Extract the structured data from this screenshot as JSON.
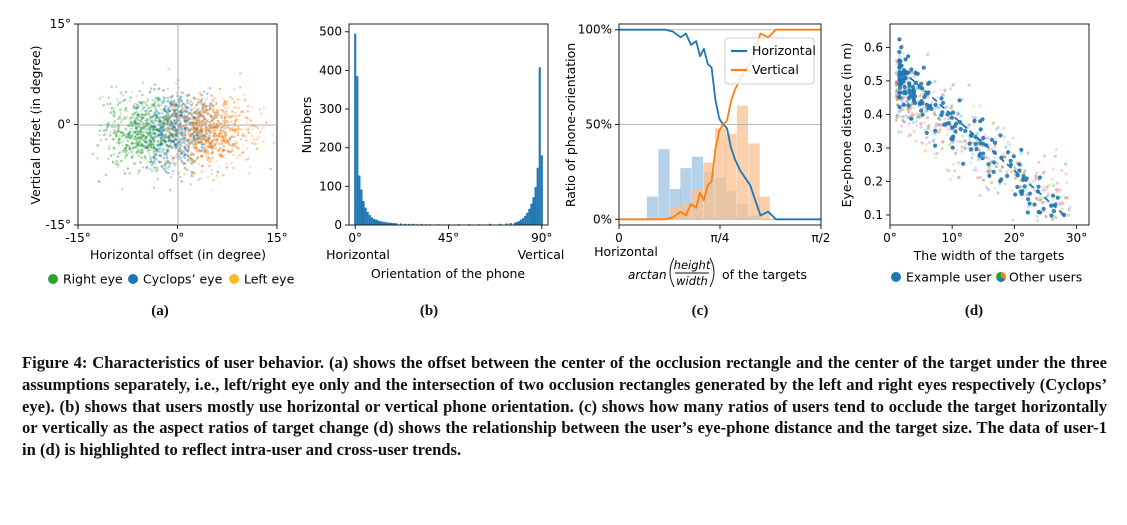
{
  "figure": {
    "sublabels": [
      "(a)",
      "(b)",
      "(c)",
      "(d)"
    ],
    "caption": "Figure 4: Characteristics of user behavior. (a) shows the offset between the center of the occlusion rectangle and the center of the target under the three assumptions separately, i.e., left/right eye only and the intersection of two occlusion rectangles generated by the left and right eyes respectively (Cyclops’ eye). (b) shows that users mostly use horizontal or vertical phone orientation. (c) shows how many ratios of users tend to occlude the target horizontally or vertically as the aspect ratios of target change (d) shows the relationship between the user’s eye-phone distance and the target size. The data of user-1 in (d) is highlighted to reflect intra-user and cross-user trends."
  },
  "colors": {
    "green": "#2ca02c",
    "blue": "#1f77b4",
    "orange": "#ff7f0e",
    "lightblue": "#9ec3e0",
    "lightorange": "#f9c08f"
  },
  "chart_data": [
    {
      "type": "scatter",
      "xlabel": "Horizontal offset (in degree)",
      "ylabel": "Vertical offset (in degree)",
      "xlim": [
        -15,
        15
      ],
      "ylim": [
        -15,
        15
      ],
      "xtick_labels": [
        "-15°",
        "0°",
        "15°"
      ],
      "ytick_labels": [
        "15°",
        "0°",
        "-15°"
      ],
      "series": [
        {
          "name": "Right eye",
          "color": "#2ca02c",
          "center": [
            -5,
            -1
          ],
          "spread": [
            3.2,
            2.6
          ]
        },
        {
          "name": "Cyclops’ eye",
          "color": "#1f77b4",
          "center": [
            0,
            -1
          ],
          "spread": [
            3.0,
            2.8
          ]
        },
        {
          "name": "Left eye",
          "color": "#ff7f0e",
          "center": [
            5,
            -1
          ],
          "spread": [
            3.2,
            2.6
          ]
        }
      ],
      "legend": "below",
      "grid": "zero-lines"
    },
    {
      "type": "bar",
      "xlabel": "Orientation of the phone",
      "ylabel": "Numbers",
      "xlim": [
        -3,
        93
      ],
      "ylim": [
        0,
        520
      ],
      "xtick_labels": [
        "0°",
        "45°",
        "90°"
      ],
      "ytick_labels": [
        "0",
        "100",
        "200",
        "300",
        "400",
        "500"
      ],
      "annotations": [
        "Horizontal",
        "Vertical"
      ],
      "bins": [
        {
          "x": 0,
          "v": 495
        },
        {
          "x": 1,
          "v": 385
        },
        {
          "x": 2,
          "v": 128
        },
        {
          "x": 3,
          "v": 92
        },
        {
          "x": 4,
          "v": 62
        },
        {
          "x": 5,
          "v": 45
        },
        {
          "x": 6,
          "v": 34
        },
        {
          "x": 7,
          "v": 26
        },
        {
          "x": 8,
          "v": 20
        },
        {
          "x": 9,
          "v": 16
        },
        {
          "x": 10,
          "v": 14
        },
        {
          "x": 11,
          "v": 12
        },
        {
          "x": 12,
          "v": 10
        },
        {
          "x": 13,
          "v": 9
        },
        {
          "x": 14,
          "v": 8
        },
        {
          "x": 15,
          "v": 7
        },
        {
          "x": 16,
          "v": 6
        },
        {
          "x": 17,
          "v": 6
        },
        {
          "x": 18,
          "v": 5
        },
        {
          "x": 19,
          "v": 5
        },
        {
          "x": 20,
          "v": 4
        },
        {
          "x": 22,
          "v": 4
        },
        {
          "x": 24,
          "v": 3
        },
        {
          "x": 26,
          "v": 3
        },
        {
          "x": 28,
          "v": 3
        },
        {
          "x": 30,
          "v": 2
        },
        {
          "x": 32,
          "v": 3
        },
        {
          "x": 34,
          "v": 2
        },
        {
          "x": 36,
          "v": 2
        },
        {
          "x": 40,
          "v": 2
        },
        {
          "x": 45,
          "v": 2
        },
        {
          "x": 50,
          "v": 2
        },
        {
          "x": 55,
          "v": 2
        },
        {
          "x": 60,
          "v": 2
        },
        {
          "x": 65,
          "v": 3
        },
        {
          "x": 70,
          "v": 3
        },
        {
          "x": 73,
          "v": 4
        },
        {
          "x": 75,
          "v": 5
        },
        {
          "x": 77,
          "v": 6
        },
        {
          "x": 78,
          "v": 8
        },
        {
          "x": 79,
          "v": 10
        },
        {
          "x": 80,
          "v": 14
        },
        {
          "x": 81,
          "v": 18
        },
        {
          "x": 82,
          "v": 24
        },
        {
          "x": 83,
          "v": 32
        },
        {
          "x": 84,
          "v": 42
        },
        {
          "x": 85,
          "v": 55
        },
        {
          "x": 86,
          "v": 72
        },
        {
          "x": 87,
          "v": 98
        },
        {
          "x": 88,
          "v": 148
        },
        {
          "x": 89,
          "v": 408
        },
        {
          "x": 90,
          "v": 180
        }
      ]
    },
    {
      "type": "line",
      "ylabel": "Ratio of phone-orientation",
      "xlabel_parts": [
        "arctan",
        "height",
        "width",
        "of the targets"
      ],
      "xlim": [
        0,
        1.5708
      ],
      "ylim": [
        -0.03,
        1.03
      ],
      "xtick_labels": [
        "0",
        "π/4",
        "π/2"
      ],
      "ytick_labels": [
        "0%",
        "50%",
        "100%"
      ],
      "annotations": [
        "Horizontal"
      ],
      "series": [
        {
          "name": "Horizontal",
          "color": "#1f77b4",
          "x": [
            0,
            0.12,
            0.24,
            0.36,
            0.42,
            0.48,
            0.52,
            0.56,
            0.6,
            0.63,
            0.66,
            0.69,
            0.72,
            0.75,
            0.78,
            0.81,
            0.84,
            0.87,
            0.9,
            0.94,
            0.98,
            1.02,
            1.06,
            1.1,
            1.16,
            1.22,
            1.3,
            1.4,
            1.5708
          ],
          "y": [
            1.0,
            1.0,
            1.0,
            1.0,
            0.99,
            0.96,
            0.98,
            0.92,
            0.94,
            0.86,
            0.9,
            0.82,
            0.8,
            0.63,
            0.53,
            0.5,
            0.48,
            0.38,
            0.32,
            0.26,
            0.22,
            0.18,
            0.1,
            0.02,
            0.04,
            0.0,
            0.0,
            0.0,
            0.0
          ]
        },
        {
          "name": "Vertical",
          "color": "#ff7f0e",
          "x": [
            0,
            0.12,
            0.24,
            0.36,
            0.42,
            0.48,
            0.52,
            0.56,
            0.6,
            0.63,
            0.66,
            0.69,
            0.72,
            0.75,
            0.78,
            0.81,
            0.84,
            0.87,
            0.9,
            0.94,
            0.98,
            1.02,
            1.06,
            1.1,
            1.16,
            1.22,
            1.3,
            1.4,
            1.5708
          ],
          "y": [
            0.0,
            0.0,
            0.0,
            0.0,
            0.01,
            0.04,
            0.02,
            0.08,
            0.06,
            0.14,
            0.1,
            0.18,
            0.2,
            0.37,
            0.47,
            0.5,
            0.52,
            0.62,
            0.68,
            0.74,
            0.78,
            0.82,
            0.9,
            0.98,
            0.96,
            1.0,
            1.0,
            1.0,
            1.0
          ]
        }
      ],
      "histograms": [
        {
          "name": "Horizontal",
          "color": "#9ec3e0",
          "bin_width": 0.0873,
          "bins": [
            [
              0.26,
              0.12
            ],
            [
              0.35,
              0.37
            ],
            [
              0.44,
              0.16
            ],
            [
              0.52,
              0.27
            ],
            [
              0.61,
              0.33
            ],
            [
              0.7,
              0.25
            ],
            [
              0.79,
              0.22
            ],
            [
              0.87,
              0.15
            ],
            [
              0.96,
              0.08
            ],
            [
              1.05,
              0.02
            ]
          ]
        },
        {
          "name": "Vertical",
          "color": "#f9c08f",
          "bin_width": 0.0873,
          "bins": [
            [
              0.44,
              0.06
            ],
            [
              0.52,
              0.08
            ],
            [
              0.61,
              0.16
            ],
            [
              0.7,
              0.3
            ],
            [
              0.79,
              0.48
            ],
            [
              0.87,
              0.45
            ],
            [
              0.96,
              0.6
            ],
            [
              1.05,
              0.4
            ],
            [
              1.13,
              0.12
            ]
          ]
        }
      ],
      "legend": "top-right"
    },
    {
      "type": "scatter",
      "xlabel": "The width of the targets",
      "ylabel": "Eye-phone distance (in m)",
      "xlim": [
        0,
        32
      ],
      "ylim": [
        0.07,
        0.67
      ],
      "xtick_labels": [
        "0°",
        "10°",
        "20°",
        "30°"
      ],
      "ytick_labels": [
        "0.6",
        "0.5",
        "0.4",
        "0.3",
        "0.2",
        "0.1"
      ],
      "series": [
        {
          "name": "Example user",
          "color": "#1f77b4",
          "trend": {
            "x": [
              2,
              28
            ],
            "y": [
              0.53,
              0.1
            ]
          }
        },
        {
          "name": "Other users",
          "color": "multicolor"
        }
      ],
      "legend": "below"
    }
  ]
}
